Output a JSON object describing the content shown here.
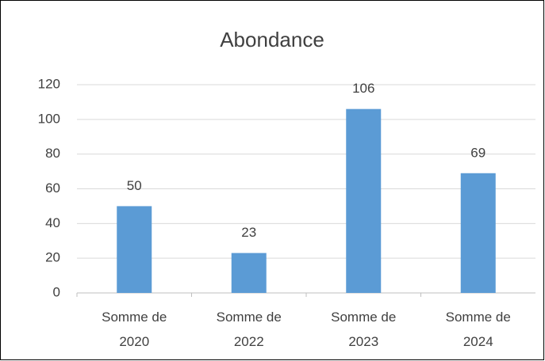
{
  "chart_data": {
    "type": "bar",
    "title": "Abondance",
    "categories": [
      "Somme de 2020",
      "Somme de 2022",
      "Somme de 2023",
      "Somme de 2024"
    ],
    "values": [
      50,
      23,
      106,
      69
    ],
    "color": "#5b9bd5",
    "ylim": [
      0,
      120
    ],
    "yticks": [
      0,
      20,
      40,
      60,
      80,
      100,
      120
    ],
    "grid": true
  }
}
